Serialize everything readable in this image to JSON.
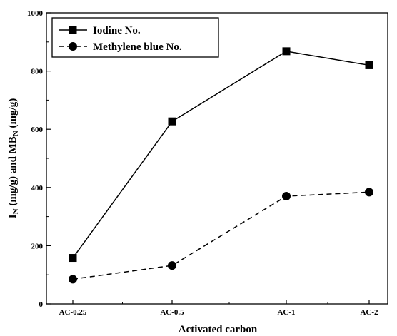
{
  "chart_data": {
    "type": "line",
    "categories": [
      "AC-0.25",
      "AC-0.5",
      "AC-1",
      "AC-2"
    ],
    "series": [
      {
        "name": "Iodine No.",
        "values": [
          158,
          627,
          868,
          820
        ],
        "marker": "square",
        "line": "solid",
        "color": "#000000"
      },
      {
        "name": "Methylene blue No.",
        "values": [
          85,
          132,
          370,
          384
        ],
        "marker": "circle",
        "line": "dashed",
        "color": "#000000"
      }
    ],
    "xlabel": "Activated carbon",
    "ylabel": {
      "prefix": "I",
      "prefix_sub": "N",
      "middle": " (mg/g) and MB",
      "middle_sub": "N",
      "suffix": " (mg/g)"
    },
    "ylim": [
      0,
      1000
    ],
    "yticks": [
      0,
      200,
      400,
      600,
      800,
      1000
    ],
    "grid": false,
    "legend_position": "top-left"
  }
}
